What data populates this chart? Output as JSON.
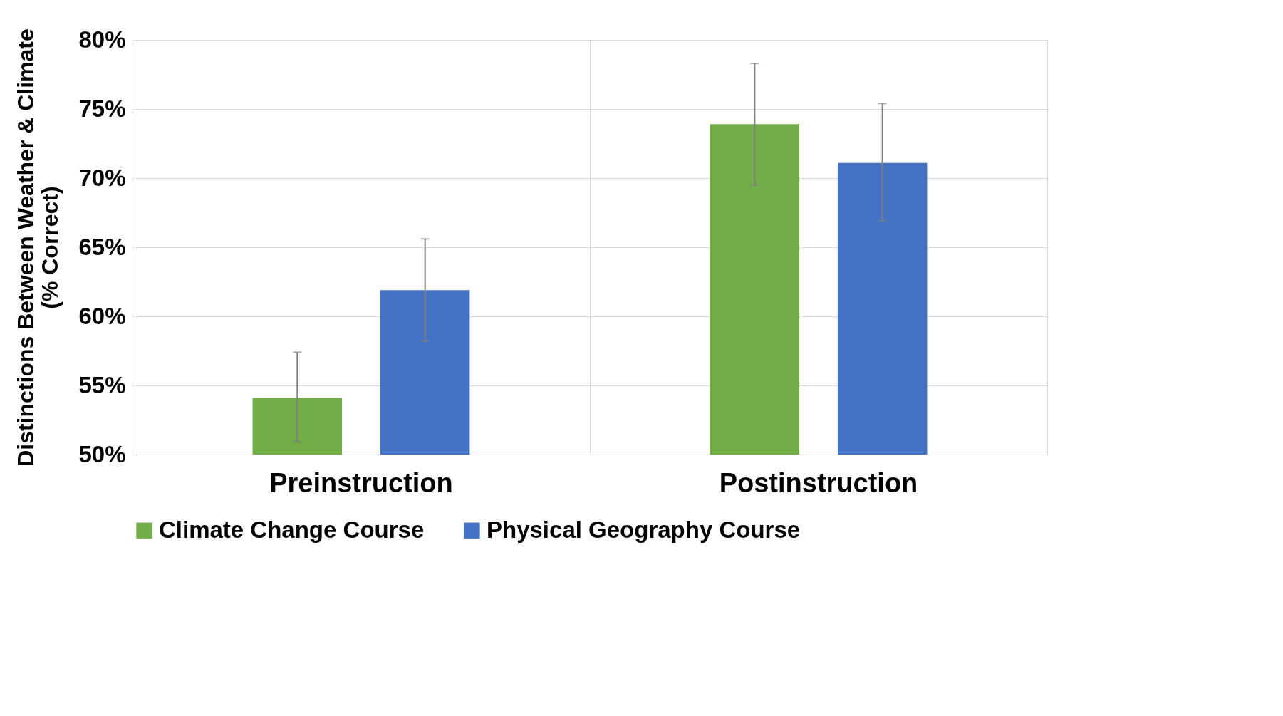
{
  "chart_data": {
    "type": "bar",
    "ylabel": "Distinctions Between Weather & Climate\n(% Correct)",
    "categories": [
      "Preinstruction",
      "Postinstruction"
    ],
    "series": [
      {
        "name": "Climate Change Course",
        "color": "#70ad47",
        "values": [
          54.1,
          73.9
        ],
        "errors": [
          [
            50.9,
            57.4
          ],
          [
            69.5,
            78.3
          ]
        ]
      },
      {
        "name": "Physical Geography Course",
        "color": "#4472c4",
        "values": [
          61.9,
          71.1
        ],
        "errors": [
          [
            58.2,
            65.6
          ],
          [
            66.9,
            75.4
          ]
        ]
      }
    ],
    "ylim": [
      50,
      80
    ],
    "yticks": [
      {
        "value": 50,
        "label": "50%"
      },
      {
        "value": 55,
        "label": "55%"
      },
      {
        "value": 60,
        "label": "60%"
      },
      {
        "value": 65,
        "label": "65%"
      },
      {
        "value": 70,
        "label": "70%"
      },
      {
        "value": 75,
        "label": "75%"
      },
      {
        "value": 80,
        "label": "80%"
      }
    ],
    "grid": true,
    "legend": "bottom"
  }
}
